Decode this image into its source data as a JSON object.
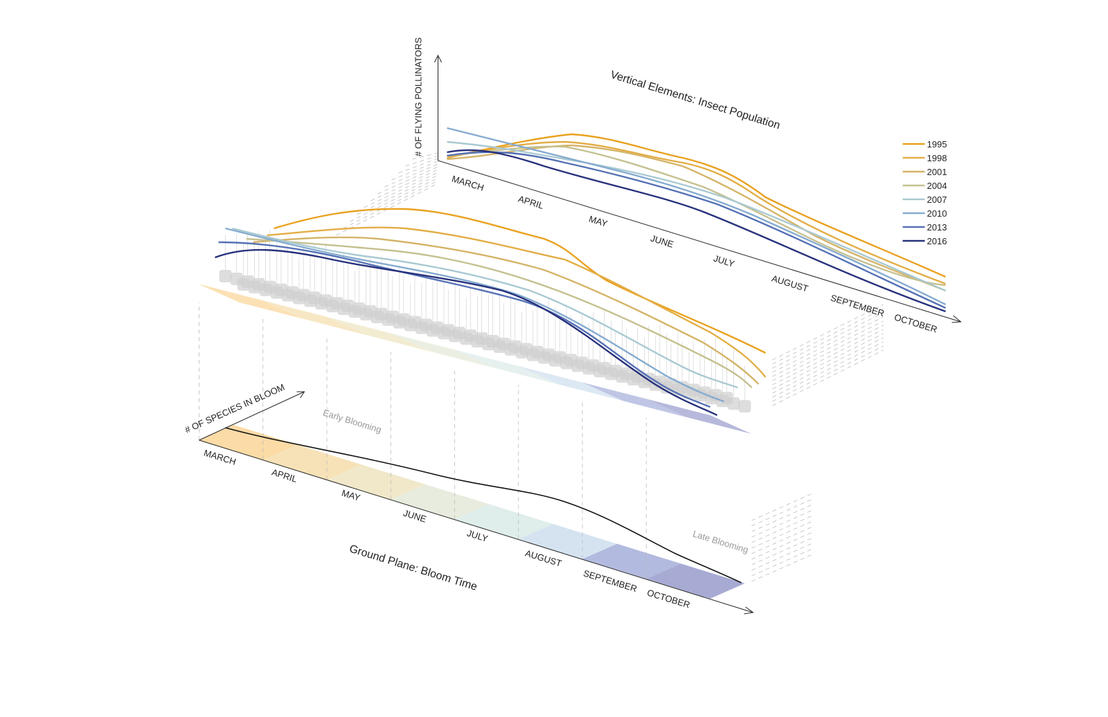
{
  "top": {
    "title": "Vertical Elements: Insect Population",
    "y_axis_label": "# OF FLYING POLLINATORS",
    "months": [
      "MARCH",
      "APRIL",
      "MAY",
      "JUNE",
      "JULY",
      "AUGUST",
      "SEPTEMBER",
      "OCTOBER"
    ]
  },
  "legend": [
    {
      "name": "1995",
      "color": "#e9a11f"
    },
    {
      "name": "1998",
      "color": "#e3ad45"
    },
    {
      "name": "2001",
      "color": "#d5b468"
    },
    {
      "name": "2004",
      "color": "#c5c08f"
    },
    {
      "name": "2007",
      "color": "#a9c9d2"
    },
    {
      "name": "2010",
      "color": "#85abd0"
    },
    {
      "name": "2013",
      "color": "#5571b5"
    },
    {
      "name": "2016",
      "color": "#27317c"
    }
  ],
  "bottom": {
    "title": "Ground Plane: Bloom Time",
    "y_axis_label": "# OF SPECIES IN BLOOM",
    "months": [
      "MARCH",
      "APRIL",
      "MAY",
      "JUNE",
      "JULY",
      "AUGUST",
      "SEPTEMBER",
      "OCTOBER"
    ],
    "band_colors": [
      "#fbd79c",
      "#f6dfb0",
      "#eee5c3",
      "#e4eada",
      "#dcebe9",
      "#d0e0ef",
      "#aab3dc",
      "#9da2cf"
    ],
    "annotations": [
      "Early Blooming",
      "Late Blooming"
    ]
  }
}
